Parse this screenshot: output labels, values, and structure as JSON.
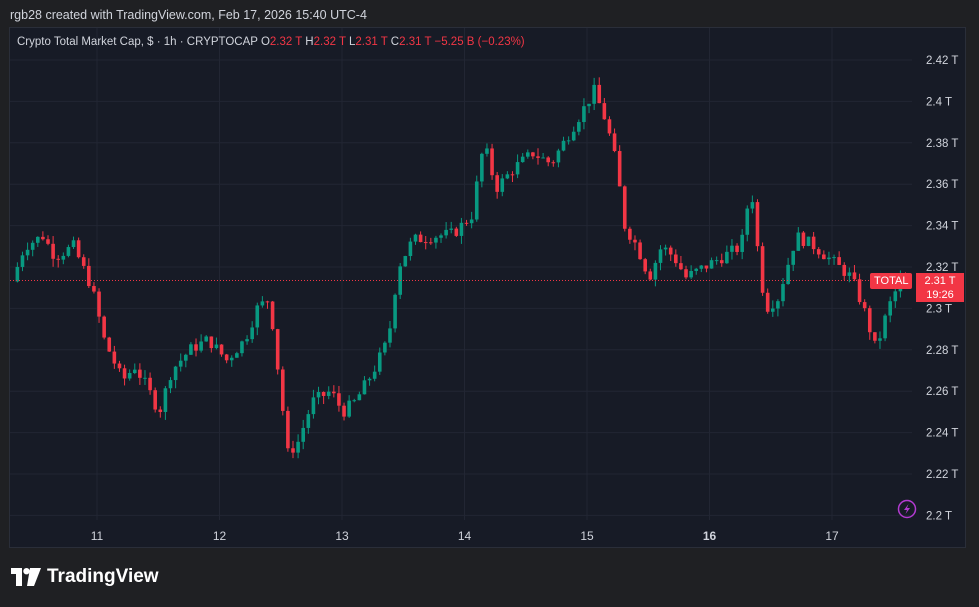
{
  "header": {
    "attribution": "rgb28 created with TradingView.com, Feb 17, 2026 15:40 UTC-4"
  },
  "legend": {
    "symbol": "Crypto Total Market Cap, $ · 1h · CRYPTOCAP",
    "o_label": "O",
    "o_value": "2.32 T",
    "h_label": "H",
    "h_value": "2.32 T",
    "l_label": "L",
    "l_value": "2.31 T",
    "c_label": "C",
    "c_value": "2.31 T",
    "change": "−5.25 B (−0.23%)"
  },
  "price_tag": {
    "symbol": "TOTAL",
    "price": "2.31 T",
    "countdown": "19:26"
  },
  "brand": {
    "name": "TradingView"
  },
  "colors": {
    "up": "#089981",
    "down": "#f23645",
    "background": "#171b26",
    "grid": "#222633",
    "text": "#d1d4dc",
    "accent_icon": "#b33ad1"
  },
  "chart_data": {
    "type": "candlestick",
    "title": "Crypto Total Market Cap, $ · 1h · CRYPTOCAP",
    "y_unit": "T",
    "ylim": [
      2.19,
      2.43
    ],
    "y_ticks": [
      "2.42 T",
      "2.4 T",
      "2.38 T",
      "2.36 T",
      "2.34 T",
      "2.32 T",
      "2.3 T",
      "2.28 T",
      "2.26 T",
      "2.24 T",
      "2.22 T",
      "2.2 T"
    ],
    "x_ticks": [
      {
        "day": 11,
        "label": "11"
      },
      {
        "day": 12,
        "label": "12"
      },
      {
        "day": 13,
        "label": "13"
      },
      {
        "day": 14,
        "label": "14"
      },
      {
        "day": 15,
        "label": "15"
      },
      {
        "day": 16,
        "label": "16"
      },
      {
        "day": 17,
        "label": "17"
      }
    ],
    "x_tick_bold": [
      "16"
    ],
    "x_range_days": [
      10.3,
      17.7
    ],
    "current_price": 2.3135,
    "key_points": [
      [
        10.35,
        2.313
      ],
      [
        10.45,
        2.33
      ],
      [
        10.6,
        2.335
      ],
      [
        10.7,
        2.325
      ],
      [
        10.85,
        2.33
      ],
      [
        11.0,
        2.31
      ],
      [
        11.1,
        2.285
      ],
      [
        11.25,
        2.265
      ],
      [
        11.35,
        2.272
      ],
      [
        11.45,
        2.262
      ],
      [
        11.55,
        2.25
      ],
      [
        11.65,
        2.27
      ],
      [
        11.8,
        2.28
      ],
      [
        11.95,
        2.285
      ],
      [
        12.1,
        2.275
      ],
      [
        12.25,
        2.285
      ],
      [
        12.35,
        2.3
      ],
      [
        12.45,
        2.305
      ],
      [
        12.52,
        2.27
      ],
      [
        12.6,
        2.23
      ],
      [
        12.68,
        2.235
      ],
      [
        12.8,
        2.255
      ],
      [
        12.95,
        2.26
      ],
      [
        13.05,
        2.25
      ],
      [
        13.15,
        2.255
      ],
      [
        13.3,
        2.27
      ],
      [
        13.42,
        2.285
      ],
      [
        13.5,
        2.32
      ],
      [
        13.62,
        2.333
      ],
      [
        13.8,
        2.335
      ],
      [
        13.95,
        2.336
      ],
      [
        14.1,
        2.345
      ],
      [
        14.2,
        2.38
      ],
      [
        14.3,
        2.358
      ],
      [
        14.45,
        2.368
      ],
      [
        14.6,
        2.375
      ],
      [
        14.75,
        2.37
      ],
      [
        14.9,
        2.385
      ],
      [
        15.0,
        2.395
      ],
      [
        15.1,
        2.405
      ],
      [
        15.2,
        2.39
      ],
      [
        15.28,
        2.37
      ],
      [
        15.35,
        2.34
      ],
      [
        15.45,
        2.33
      ],
      [
        15.55,
        2.315
      ],
      [
        15.65,
        2.33
      ],
      [
        15.75,
        2.325
      ],
      [
        15.85,
        2.315
      ],
      [
        16.0,
        2.32
      ],
      [
        16.15,
        2.325
      ],
      [
        16.3,
        2.33
      ],
      [
        16.38,
        2.36
      ],
      [
        16.45,
        2.32
      ],
      [
        16.5,
        2.3
      ],
      [
        16.6,
        2.305
      ],
      [
        16.75,
        2.335
      ],
      [
        16.9,
        2.33
      ],
      [
        17.0,
        2.325
      ],
      [
        17.1,
        2.32
      ],
      [
        17.2,
        2.315
      ],
      [
        17.3,
        2.3
      ],
      [
        17.4,
        2.28
      ],
      [
        17.5,
        2.3
      ],
      [
        17.6,
        2.3135
      ]
    ]
  }
}
